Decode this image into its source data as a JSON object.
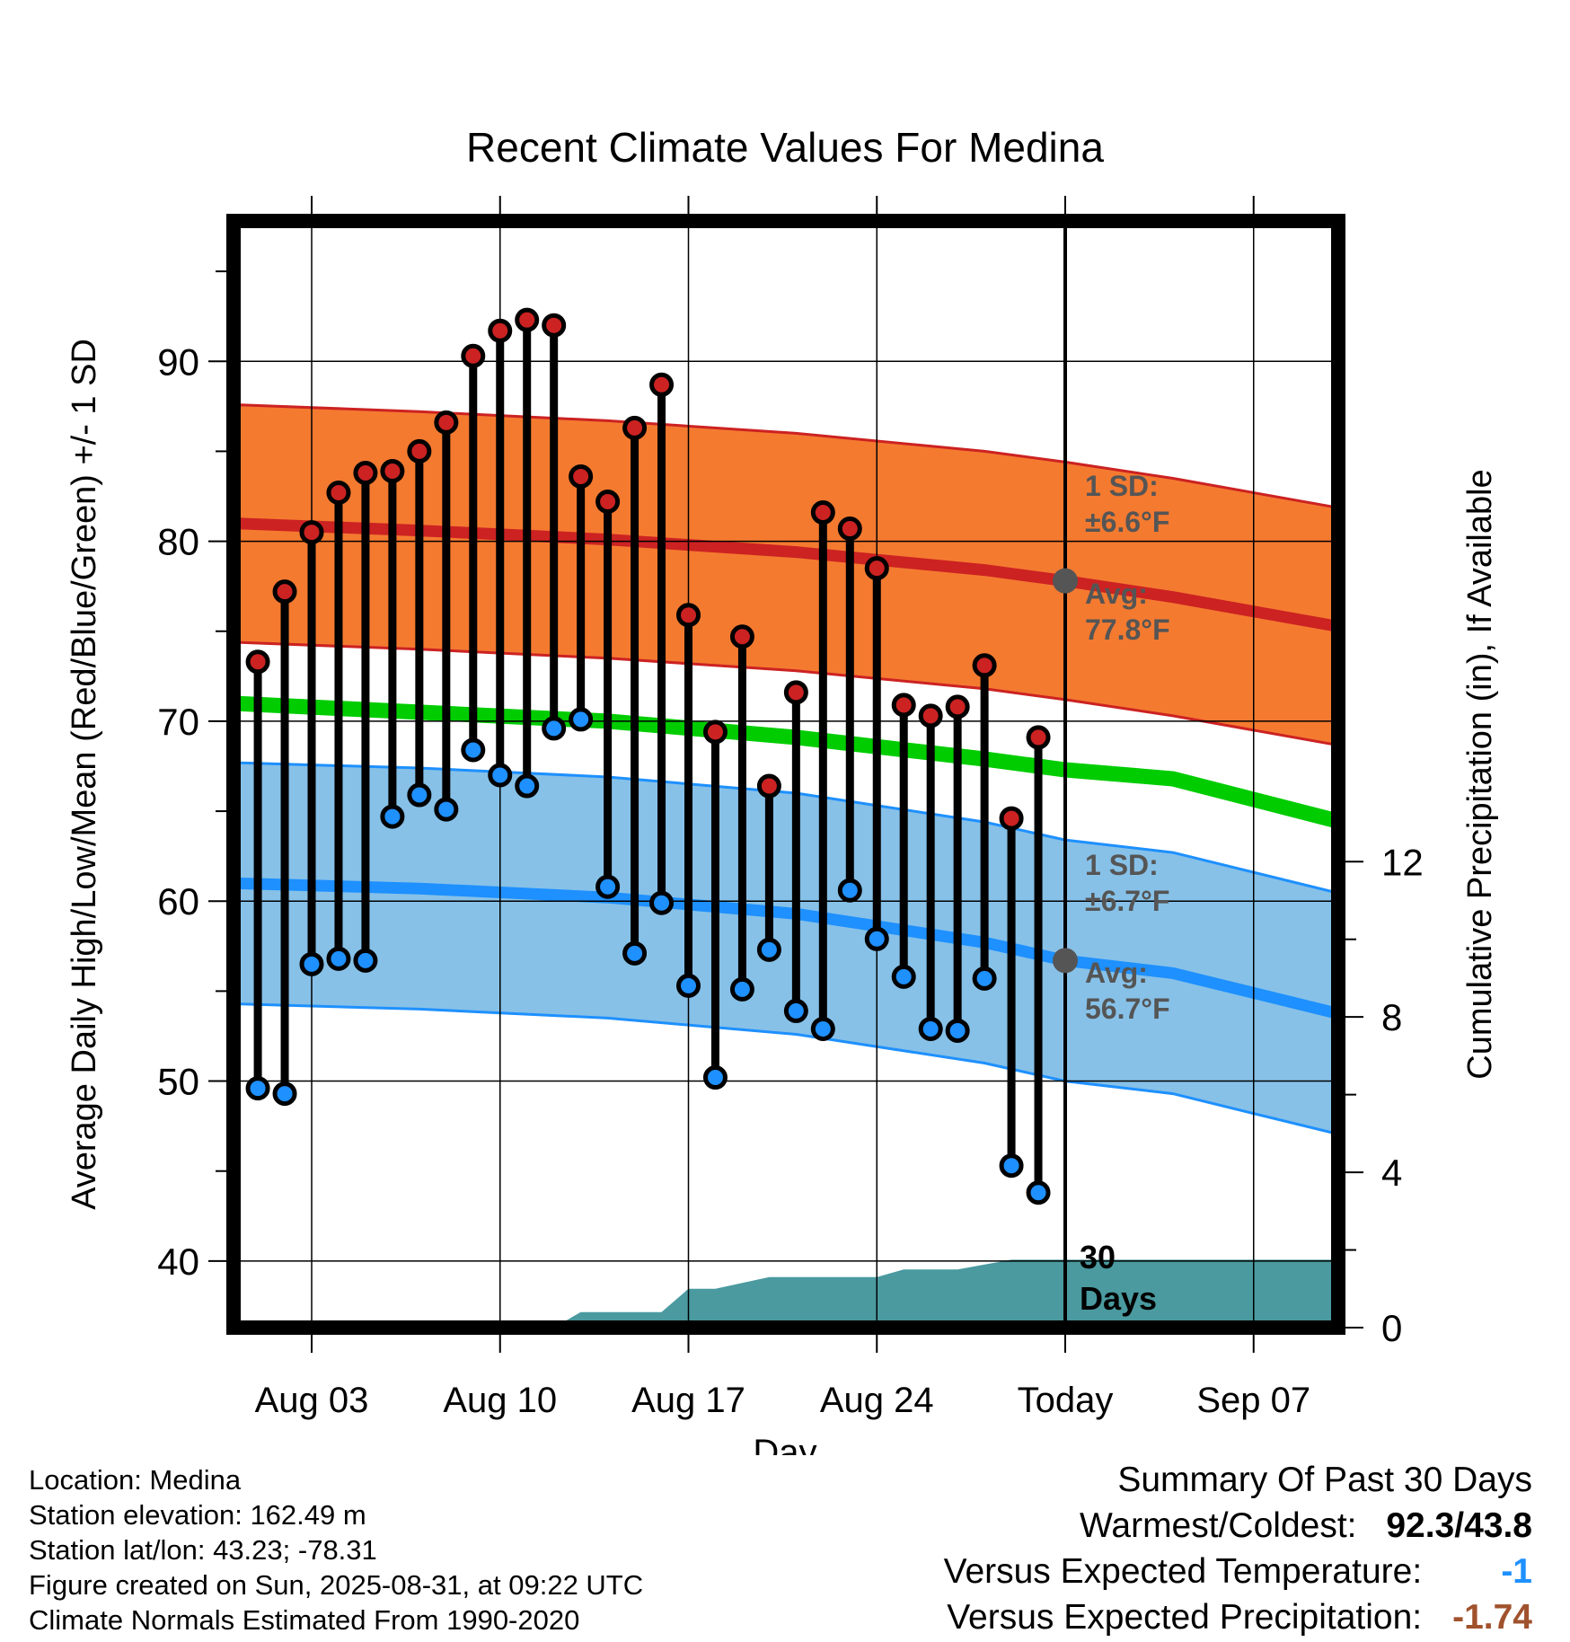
{
  "chart_data": {
    "type": "line",
    "title": "Recent Climate Values For Medina",
    "xlabel": "Day",
    "ylabel": "Average Daily High/Low/Mean (Red/Blue/Green) +/- 1 SD",
    "y2label": "Cumulative Precipitation (in), If Available",
    "ylim": [
      36.3,
      97.8
    ],
    "y2lim": [
      0,
      28.5
    ],
    "yticks": [
      40,
      50,
      60,
      70,
      80,
      90
    ],
    "y2ticks": [
      0,
      4,
      8,
      12
    ],
    "x_tick_labels": [
      "Aug 03",
      "Aug 10",
      "Aug 17",
      "Aug 24",
      "Today",
      "Sep 07"
    ],
    "x_dates": [
      "Aug 01",
      "Aug 02",
      "Aug 03",
      "Aug 04",
      "Aug 05",
      "Aug 06",
      "Aug 07",
      "Aug 08",
      "Aug 09",
      "Aug 10",
      "Aug 11",
      "Aug 12",
      "Aug 13",
      "Aug 14",
      "Aug 15",
      "Aug 16",
      "Aug 17",
      "Aug 18",
      "Aug 19",
      "Aug 20",
      "Aug 21",
      "Aug 22",
      "Aug 23",
      "Aug 24",
      "Aug 25",
      "Aug 26",
      "Aug 27",
      "Aug 28",
      "Aug 29",
      "Aug 30"
    ],
    "series": [
      {
        "name": "High",
        "color": "#cc2222",
        "values": [
          73.3,
          77.2,
          80.5,
          82.7,
          83.8,
          83.9,
          85.0,
          86.6,
          90.3,
          91.7,
          92.3,
          92.0,
          83.6,
          82.2,
          86.3,
          88.7,
          75.9,
          69.4,
          74.7,
          66.4,
          71.6,
          81.6,
          80.7,
          78.5,
          70.9,
          70.3,
          70.8,
          73.1,
          64.6,
          69.1
        ]
      },
      {
        "name": "Low",
        "color": "#1e90ff",
        "values": [
          49.6,
          49.3,
          56.5,
          56.8,
          56.7,
          64.7,
          65.9,
          65.1,
          68.4,
          67.0,
          66.4,
          69.6,
          70.1,
          60.8,
          57.1,
          59.9,
          55.3,
          50.2,
          55.1,
          57.3,
          53.9,
          52.9,
          60.6,
          57.9,
          55.8,
          52.9,
          52.8,
          55.7,
          45.3,
          43.8
        ]
      }
    ],
    "normals": {
      "x_dates": [
        "Jul 31",
        "Aug 07",
        "Aug 14",
        "Aug 21",
        "Aug 28",
        "Aug 31",
        "Sep 04",
        "Sep 10"
      ],
      "high_avg": [
        81.0,
        80.6,
        80.1,
        79.4,
        78.4,
        77.8,
        76.9,
        75.3
      ],
      "low_avg": [
        61.0,
        60.7,
        60.2,
        59.3,
        57.7,
        56.7,
        56.0,
        53.8
      ],
      "mean_avg": [
        71.0,
        70.5,
        70.0,
        69.1,
        67.9,
        67.3,
        66.8,
        64.5
      ],
      "high_sd": 6.6,
      "low_sd": 6.7
    },
    "precipitation": {
      "x_dates": [
        "Jul 31",
        "Aug 12",
        "Aug 13",
        "Aug 16",
        "Aug 17",
        "Aug 18",
        "Aug 20",
        "Aug 24",
        "Aug 25",
        "Aug 27",
        "Aug 29",
        "Sep 10"
      ],
      "values": [
        0,
        0,
        0.4,
        0.4,
        1.0,
        1.0,
        1.3,
        1.3,
        1.5,
        1.5,
        1.75,
        1.75
      ]
    },
    "today": "Aug 31",
    "colors": {
      "high_band": "#f47a30",
      "high_line": "#cc2222",
      "low_band": "#87c1e8",
      "low_line": "#1e90ff",
      "mean_line": "#00cc00",
      "precip": "#4a9aa0",
      "annotation": "#555555"
    },
    "annotations": {
      "high_sd_label": "1 SD:",
      "high_sd_value": "±6.6°F",
      "high_avg_label": "Avg:",
      "high_avg_value": "77.8°F",
      "low_sd_label": "1 SD:",
      "low_sd_value": "±6.7°F",
      "low_avg_label": "Avg:",
      "low_avg_value": "56.7°F",
      "days_line1": "30",
      "days_line2": "Days"
    }
  },
  "info": {
    "location": "Location: Medina",
    "elevation": "Station elevation: 162.49 m",
    "latlon": "Station lat/lon: 43.23; -78.31",
    "created": "Figure created on Sun, 2025-08-31, at 09:22 UTC",
    "normals": "Climate Normals Estimated From 1990-2020"
  },
  "summary": {
    "title": "Summary Of Past 30 Days",
    "warmest_label": "Warmest/Coldest:",
    "warmest_value": "92.3/43.8",
    "temp_label": "Versus Expected Temperature:",
    "temp_value": "-1",
    "temp_color": "#1e90ff",
    "precip_label": "Versus Expected Precipitation:",
    "precip_value": "-1.74",
    "precip_color": "#a0522d"
  }
}
